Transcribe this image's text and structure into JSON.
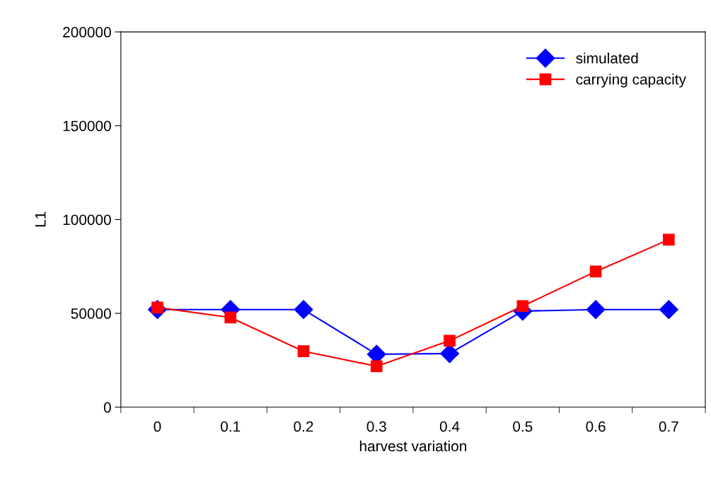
{
  "chart_data": {
    "type": "line",
    "xlabel": "harvest variation",
    "ylabel": "L1",
    "categories": [
      "0",
      "0.1",
      "0.2",
      "0.3",
      "0.4",
      "0.5",
      "0.6",
      "0.7"
    ],
    "series": [
      {
        "name": "simulated",
        "color": "#0000ff",
        "marker": "diamond",
        "values": [
          52000,
          52000,
          52000,
          28200,
          28600,
          51200,
          52000,
          52000
        ]
      },
      {
        "name": "carrying capacity",
        "color": "#ff0000",
        "marker": "square",
        "values": [
          53100,
          47800,
          29800,
          21800,
          35400,
          53900,
          72300,
          89300
        ]
      }
    ],
    "ylim": [
      0,
      200000
    ],
    "yticks": [
      0,
      50000,
      100000,
      150000,
      200000
    ],
    "grid": false,
    "legend": "top right",
    "line_style": "solid"
  }
}
